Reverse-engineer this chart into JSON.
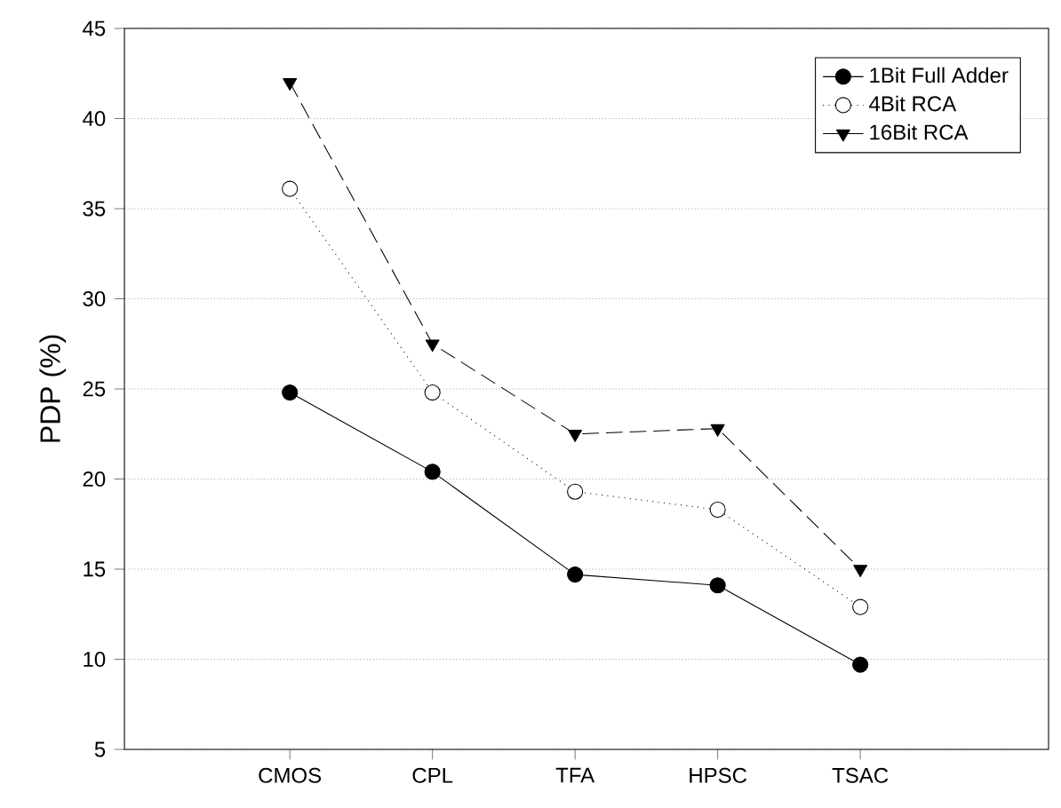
{
  "chart_data": {
    "type": "line",
    "ylabel": "PDP (%)",
    "categories": [
      "CMOS",
      "CPL",
      "TFA",
      "HPSC",
      "TSAC"
    ],
    "series": [
      {
        "name": "1Bit Full Adder",
        "color": "#000000",
        "values": [
          24.8,
          20.4,
          14.7,
          14.1,
          9.7
        ],
        "marker": "circle",
        "line_style": "solid"
      },
      {
        "name": "4Bit RCA",
        "color": "#000000",
        "values": [
          36.1,
          24.8,
          19.3,
          18.3,
          12.9
        ],
        "marker": "circle",
        "line_style": "dotted"
      },
      {
        "name": "16Bit RCA",
        "color": "#000000",
        "values": [
          42.0,
          27.5,
          22.5,
          22.8,
          15.0
        ],
        "marker": "triangle",
        "line_style": "dashed"
      }
    ],
    "ylim": [
      5,
      45
    ],
    "yticks": [
      5,
      10,
      15,
      20,
      25,
      30,
      35,
      40,
      45
    ],
    "grid": "y",
    "legend": "top right"
  }
}
